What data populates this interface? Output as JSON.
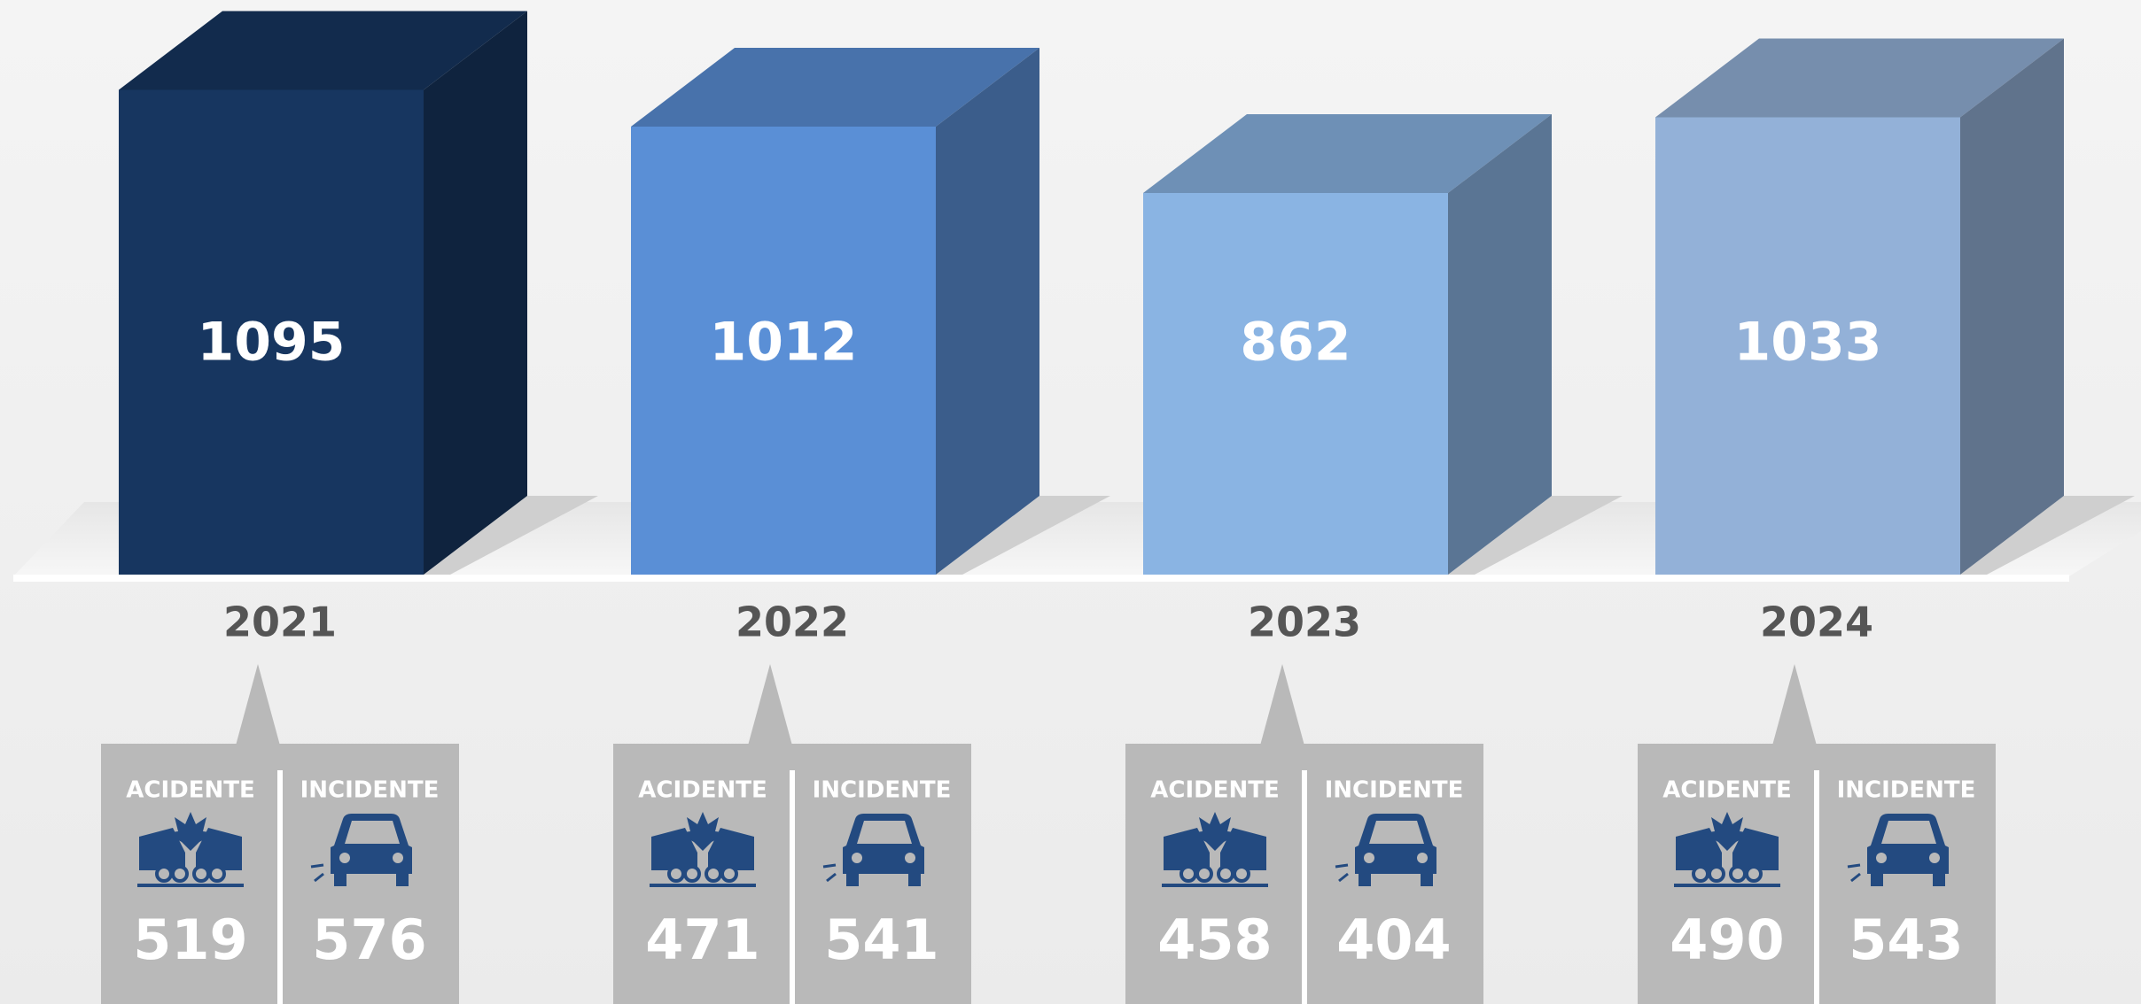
{
  "chart_data": {
    "type": "bar3d",
    "categories": [
      "2021",
      "2022",
      "2023",
      "2024"
    ],
    "values": [
      1095,
      1012,
      862,
      1033
    ],
    "colors": [
      "#173660",
      "#5a8fd6",
      "#8ab4e3",
      "#93b1d8"
    ],
    "breakdown": [
      {
        "name": "ACIDENTE",
        "values": [
          519,
          471,
          458,
          490
        ]
      },
      {
        "name": "INCIDENTE",
        "values": [
          576,
          541,
          404,
          543
        ]
      }
    ]
  }
}
